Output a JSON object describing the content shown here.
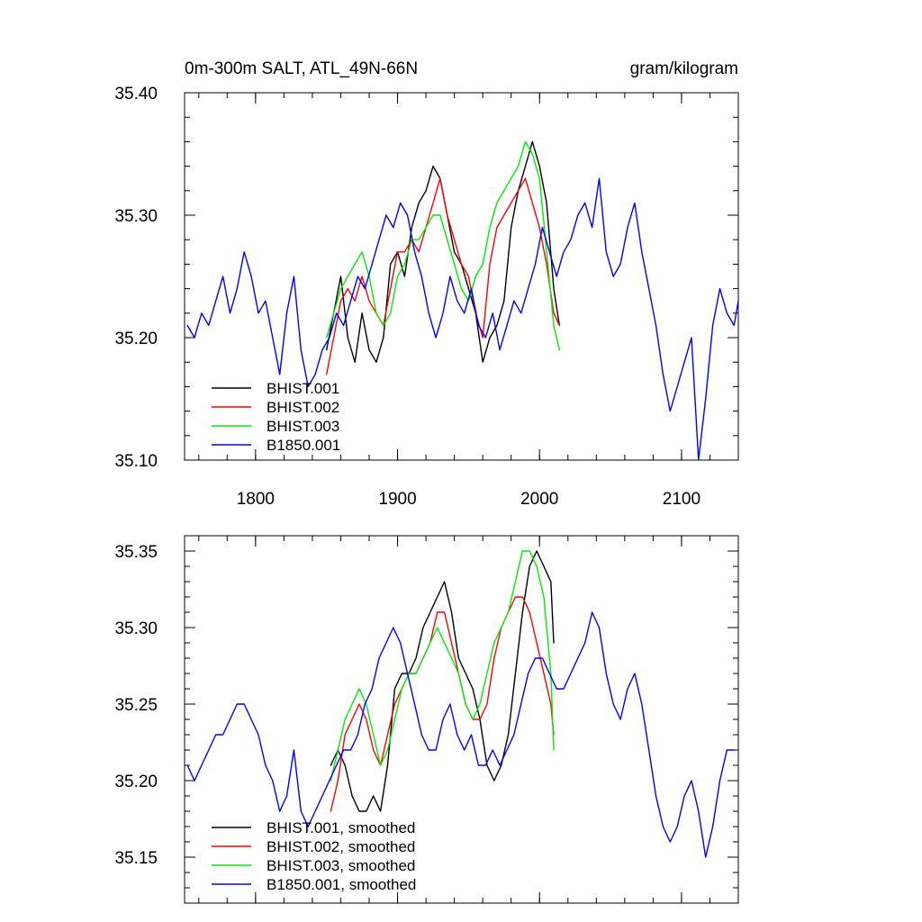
{
  "colors": {
    "black": "#000000",
    "red": "#ff0000",
    "green": "#00ee00",
    "blue": "#0000ff"
  },
  "chart_data": [
    {
      "type": "line",
      "title": "0m-300m SALT, ATL_49N-66N",
      "units": "gram/kilogram",
      "xlim": [
        1750,
        2140
      ],
      "ylim": [
        35.1,
        35.4
      ],
      "x_ticks": [
        1800,
        1900,
        2000,
        2100
      ],
      "y_ticks": [
        35.1,
        35.2,
        35.3,
        35.4
      ],
      "y_tick_labels": [
        "35.10",
        "35.20",
        "35.30",
        "35.40"
      ],
      "x_tick_labels": [
        "1800",
        "1900",
        "2000",
        "2100"
      ],
      "legend_position": "bottom-left",
      "series": [
        {
          "name": "BHIST.001",
          "color": "#000000",
          "x": [
            1850,
            1855,
            1860,
            1865,
            1870,
            1875,
            1880,
            1885,
            1890,
            1895,
            1900,
            1905,
            1910,
            1915,
            1920,
            1925,
            1930,
            1935,
            1940,
            1945,
            1950,
            1955,
            1960,
            1965,
            1970,
            1975,
            1980,
            1985,
            1990,
            1995,
            2000,
            2005,
            2010,
            2014
          ],
          "y": [
            35.19,
            35.22,
            35.25,
            35.2,
            35.18,
            35.22,
            35.19,
            35.18,
            35.2,
            35.26,
            35.27,
            35.25,
            35.29,
            35.31,
            35.32,
            35.34,
            35.33,
            35.3,
            35.27,
            35.26,
            35.24,
            35.22,
            35.18,
            35.2,
            35.21,
            35.23,
            35.29,
            35.32,
            35.34,
            35.36,
            35.34,
            35.31,
            35.24,
            35.21
          ]
        },
        {
          "name": "BHIST.002",
          "color": "#ff0000",
          "x": [
            1850,
            1855,
            1860,
            1865,
            1870,
            1875,
            1880,
            1885,
            1890,
            1895,
            1900,
            1905,
            1910,
            1915,
            1920,
            1925,
            1930,
            1935,
            1940,
            1945,
            1950,
            1955,
            1960,
            1965,
            1970,
            1975,
            1980,
            1985,
            1990,
            1995,
            2000,
            2005,
            2010,
            2014
          ],
          "y": [
            35.17,
            35.2,
            35.23,
            35.24,
            35.23,
            35.25,
            35.23,
            35.22,
            35.21,
            35.24,
            35.27,
            35.27,
            35.28,
            35.27,
            35.29,
            35.31,
            35.33,
            35.3,
            35.28,
            35.26,
            35.25,
            35.22,
            35.2,
            35.26,
            35.29,
            35.3,
            35.31,
            35.32,
            35.33,
            35.31,
            35.29,
            35.26,
            35.22,
            35.21
          ]
        },
        {
          "name": "BHIST.003",
          "color": "#00ee00",
          "x": [
            1850,
            1855,
            1860,
            1865,
            1870,
            1875,
            1880,
            1885,
            1890,
            1895,
            1900,
            1905,
            1910,
            1915,
            1920,
            1925,
            1930,
            1935,
            1940,
            1945,
            1950,
            1955,
            1960,
            1965,
            1970,
            1975,
            1980,
            1985,
            1990,
            1995,
            2000,
            2005,
            2010,
            2014
          ],
          "y": [
            35.2,
            35.22,
            35.24,
            35.25,
            35.26,
            35.27,
            35.25,
            35.22,
            35.21,
            35.22,
            35.25,
            35.26,
            35.28,
            35.28,
            35.29,
            35.3,
            35.3,
            35.28,
            35.26,
            35.24,
            35.23,
            35.25,
            35.26,
            35.29,
            35.31,
            35.32,
            35.33,
            35.34,
            35.36,
            35.35,
            35.33,
            35.27,
            35.21,
            35.19
          ]
        },
        {
          "name": "B1850.001",
          "color": "#0000ff",
          "x": [
            1752,
            1757,
            1762,
            1767,
            1772,
            1777,
            1782,
            1787,
            1792,
            1797,
            1802,
            1807,
            1812,
            1817,
            1822,
            1827,
            1832,
            1837,
            1842,
            1847,
            1852,
            1857,
            1862,
            1867,
            1872,
            1877,
            1882,
            1887,
            1892,
            1897,
            1902,
            1907,
            1912,
            1917,
            1922,
            1927,
            1932,
            1937,
            1942,
            1947,
            1952,
            1957,
            1962,
            1967,
            1972,
            1977,
            1982,
            1987,
            1992,
            1997,
            2002,
            2007,
            2012,
            2017,
            2022,
            2027,
            2032,
            2037,
            2042,
            2047,
            2052,
            2057,
            2062,
            2067,
            2072,
            2077,
            2082,
            2087,
            2092,
            2097,
            2102,
            2107,
            2112,
            2117,
            2122,
            2127,
            2132,
            2137,
            2140
          ],
          "y": [
            35.21,
            35.2,
            35.22,
            35.21,
            35.23,
            35.25,
            35.22,
            35.24,
            35.27,
            35.25,
            35.22,
            35.23,
            35.2,
            35.17,
            35.22,
            35.25,
            35.19,
            35.16,
            35.17,
            35.19,
            35.2,
            35.22,
            35.21,
            35.23,
            35.25,
            35.24,
            35.26,
            35.28,
            35.3,
            35.29,
            35.31,
            35.3,
            35.27,
            35.25,
            35.22,
            35.2,
            35.22,
            35.25,
            35.23,
            35.22,
            35.24,
            35.21,
            35.2,
            35.22,
            35.19,
            35.21,
            35.23,
            35.22,
            35.24,
            35.26,
            35.29,
            35.27,
            35.25,
            35.27,
            35.28,
            35.3,
            35.31,
            35.29,
            35.33,
            35.27,
            35.25,
            35.26,
            35.29,
            35.31,
            35.27,
            35.24,
            35.21,
            35.17,
            35.14,
            35.16,
            35.18,
            35.2,
            35.1,
            35.15,
            35.21,
            35.24,
            35.22,
            35.21,
            35.23
          ]
        }
      ]
    },
    {
      "type": "line",
      "xlim": [
        1750,
        2140
      ],
      "ylim": [
        35.12,
        35.36
      ],
      "x_ticks": [
        1800,
        1900,
        2000,
        2100
      ],
      "y_ticks": [
        35.15,
        35.2,
        35.25,
        35.3,
        35.35
      ],
      "y_tick_labels": [
        "35.15",
        "35.20",
        "35.25",
        "35.30",
        "35.35"
      ],
      "legend_position": "bottom-left",
      "series": [
        {
          "name": "BHIST.001, smoothed",
          "color": "#000000",
          "x": [
            1853,
            1858,
            1863,
            1868,
            1873,
            1878,
            1883,
            1888,
            1893,
            1898,
            1903,
            1908,
            1913,
            1918,
            1923,
            1928,
            1933,
            1938,
            1943,
            1948,
            1953,
            1958,
            1963,
            1968,
            1973,
            1978,
            1983,
            1988,
            1993,
            1998,
            2003,
            2008,
            2010
          ],
          "y": [
            35.21,
            35.22,
            35.21,
            35.19,
            35.18,
            35.18,
            35.19,
            35.18,
            35.21,
            35.26,
            35.27,
            35.27,
            35.28,
            35.3,
            35.31,
            35.32,
            35.33,
            35.31,
            35.28,
            35.27,
            35.26,
            35.24,
            35.21,
            35.2,
            35.21,
            35.23,
            35.27,
            35.31,
            35.34,
            35.35,
            35.34,
            35.33,
            35.29
          ]
        },
        {
          "name": "BHIST.002, smoothed",
          "color": "#ff0000",
          "x": [
            1853,
            1858,
            1863,
            1868,
            1873,
            1878,
            1883,
            1888,
            1893,
            1898,
            1903,
            1908,
            1913,
            1918,
            1923,
            1928,
            1933,
            1938,
            1943,
            1948,
            1953,
            1958,
            1963,
            1968,
            1973,
            1978,
            1983,
            1988,
            1993,
            1998,
            2003,
            2008,
            2010
          ],
          "y": [
            35.18,
            35.2,
            35.23,
            35.24,
            35.25,
            35.24,
            35.22,
            35.21,
            35.23,
            35.25,
            35.26,
            35.27,
            35.27,
            35.28,
            35.29,
            35.31,
            35.31,
            35.29,
            35.27,
            35.25,
            35.24,
            35.24,
            35.25,
            35.28,
            35.3,
            35.31,
            35.32,
            35.32,
            35.31,
            35.29,
            35.27,
            35.25,
            35.23
          ]
        },
        {
          "name": "BHIST.003, smoothed",
          "color": "#00ee00",
          "x": [
            1853,
            1858,
            1863,
            1868,
            1873,
            1878,
            1883,
            1888,
            1893,
            1898,
            1903,
            1908,
            1913,
            1918,
            1923,
            1928,
            1933,
            1938,
            1943,
            1948,
            1953,
            1958,
            1963,
            1968,
            1973,
            1978,
            1983,
            1988,
            1993,
            1998,
            2003,
            2008,
            2010
          ],
          "y": [
            35.2,
            35.22,
            35.24,
            35.25,
            35.26,
            35.25,
            35.23,
            35.21,
            35.22,
            35.24,
            35.26,
            35.27,
            35.27,
            35.28,
            35.29,
            35.3,
            35.29,
            35.28,
            35.27,
            35.25,
            35.24,
            35.25,
            35.27,
            35.29,
            35.3,
            35.31,
            35.33,
            35.35,
            35.35,
            35.34,
            35.32,
            35.27,
            35.22
          ]
        },
        {
          "name": "B1850.001, smoothed",
          "color": "#0000ff",
          "x": [
            1752,
            1757,
            1762,
            1767,
            1772,
            1777,
            1782,
            1787,
            1792,
            1797,
            1802,
            1807,
            1812,
            1817,
            1822,
            1827,
            1832,
            1837,
            1842,
            1847,
            1852,
            1857,
            1862,
            1867,
            1872,
            1877,
            1882,
            1887,
            1892,
            1897,
            1902,
            1907,
            1912,
            1917,
            1922,
            1927,
            1932,
            1937,
            1942,
            1947,
            1952,
            1957,
            1962,
            1967,
            1972,
            1977,
            1982,
            1987,
            1992,
            1997,
            2002,
            2007,
            2012,
            2017,
            2022,
            2027,
            2032,
            2037,
            2042,
            2047,
            2052,
            2057,
            2062,
            2067,
            2072,
            2077,
            2082,
            2087,
            2092,
            2097,
            2102,
            2107,
            2112,
            2117,
            2122,
            2127,
            2132,
            2137
          ],
          "y": [
            35.21,
            35.2,
            35.21,
            35.22,
            35.23,
            35.23,
            35.24,
            35.25,
            35.25,
            35.24,
            35.23,
            35.21,
            35.2,
            35.18,
            35.19,
            35.22,
            35.18,
            35.17,
            35.18,
            35.19,
            35.2,
            35.21,
            35.22,
            35.22,
            35.23,
            35.25,
            35.26,
            35.28,
            35.29,
            35.3,
            35.29,
            35.27,
            35.25,
            35.23,
            35.22,
            35.22,
            35.24,
            35.25,
            35.23,
            35.22,
            35.23,
            35.21,
            35.21,
            35.22,
            35.21,
            35.22,
            35.23,
            35.25,
            35.27,
            35.28,
            35.28,
            35.27,
            35.26,
            35.26,
            35.27,
            35.28,
            35.29,
            35.31,
            35.3,
            35.27,
            35.25,
            35.24,
            35.26,
            35.27,
            35.25,
            35.22,
            35.19,
            35.17,
            35.16,
            35.17,
            35.19,
            35.2,
            35.18,
            35.15,
            35.17,
            35.2,
            35.22,
            35.22
          ]
        }
      ]
    }
  ]
}
